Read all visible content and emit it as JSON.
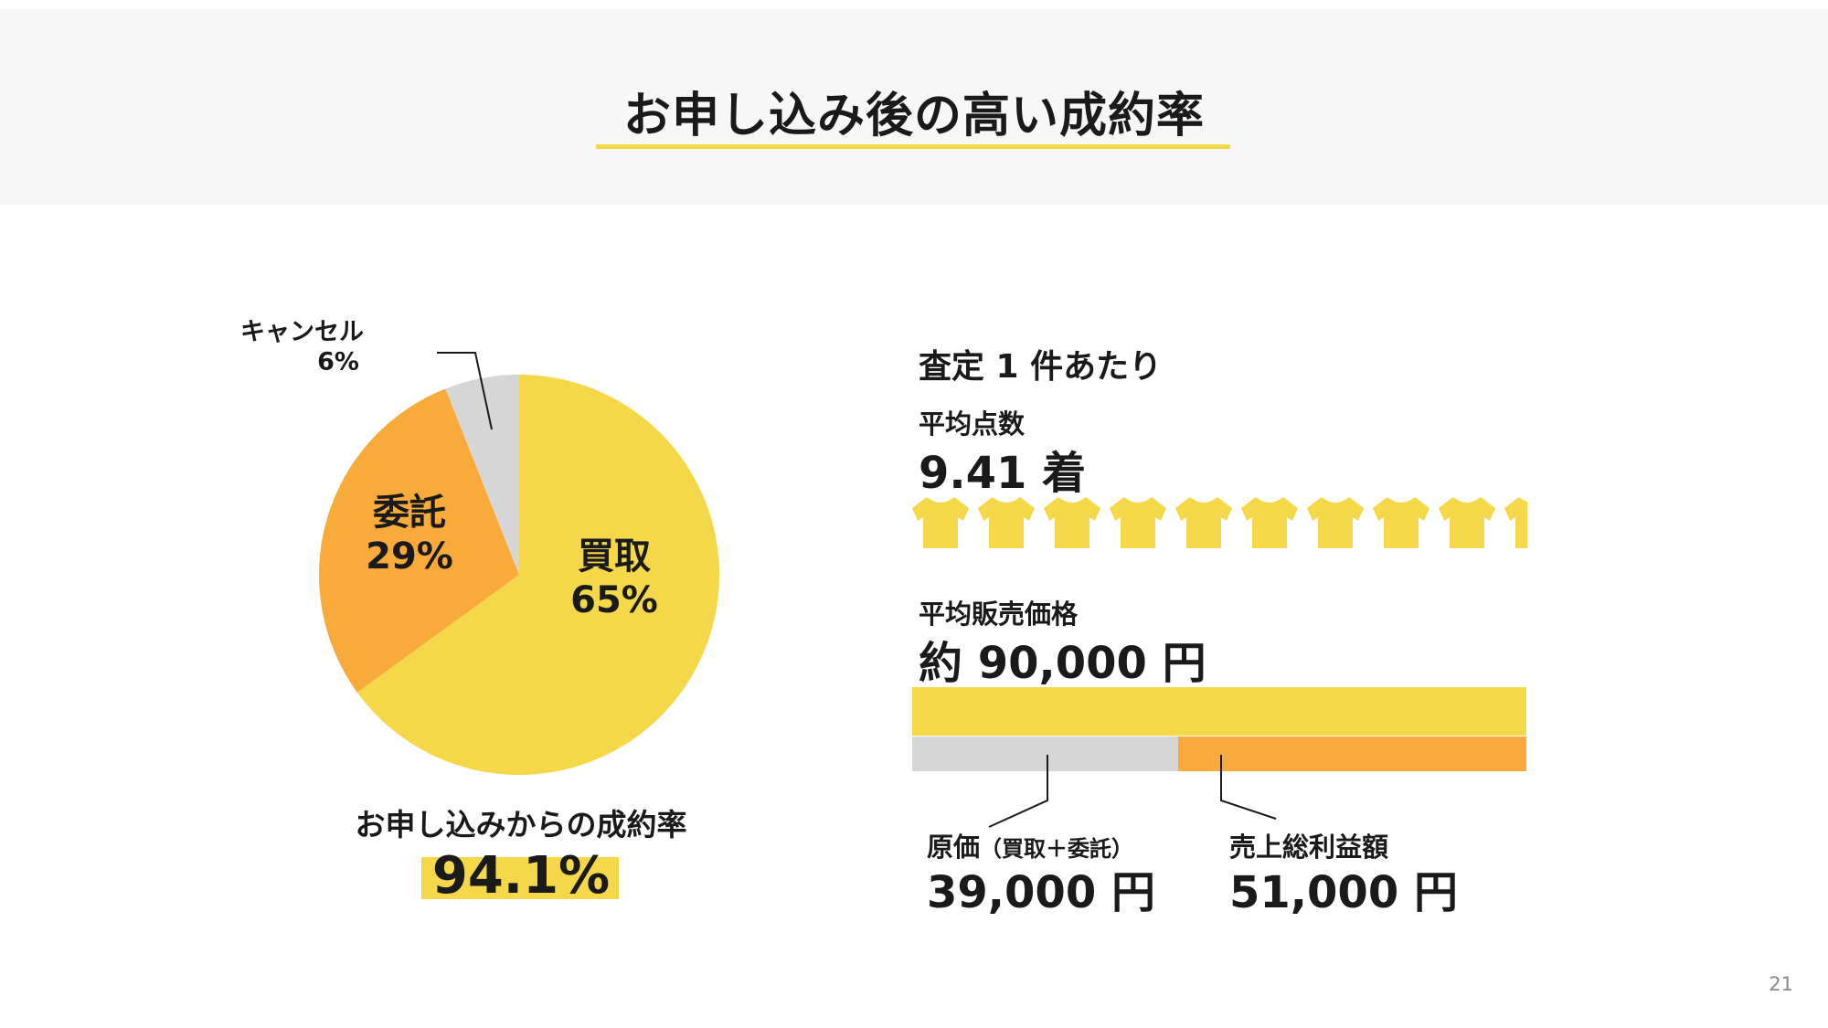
{
  "title": "お申し込み後の高い成約率",
  "chart_data": [
    {
      "type": "pie",
      "slices": [
        {
          "label": "買取",
          "value": 65,
          "value_label": "65%",
          "color": "#f5d84a"
        },
        {
          "label": "委託",
          "value": 29,
          "value_label": "29%",
          "color": "#f8ab3a"
        },
        {
          "label": "キャンセル",
          "value": 6,
          "value_label": "6%",
          "color": "#d6d6d6"
        }
      ]
    },
    {
      "type": "bar",
      "orientation": "horizontal-stacked",
      "total": {
        "label": "平均販売価格",
        "value": 90000
      },
      "segments": [
        {
          "label": "原価",
          "value": 39000,
          "color": "#d6d6d6"
        },
        {
          "label": "売上総利益額",
          "value": 51000,
          "color": "#f8ab3a"
        }
      ]
    }
  ],
  "conversion": {
    "label": "お申し込みからの成約率",
    "value": "94.1%"
  },
  "per_assessment": {
    "heading": "査定 1 件あたり",
    "count": {
      "label": "平均点数",
      "value": "9.41 着",
      "number": 9.41,
      "icon": "tshirt-icon",
      "color": "#f5d84a"
    },
    "price": {
      "label": "平均販売価格",
      "value": "約 90,000 円"
    },
    "cost": {
      "label": "原価",
      "label_note": "（買取＋委託）",
      "value": "39,000 円"
    },
    "profit": {
      "label": "売上総利益額",
      "value": "51,000 円"
    }
  },
  "page_number": "21"
}
